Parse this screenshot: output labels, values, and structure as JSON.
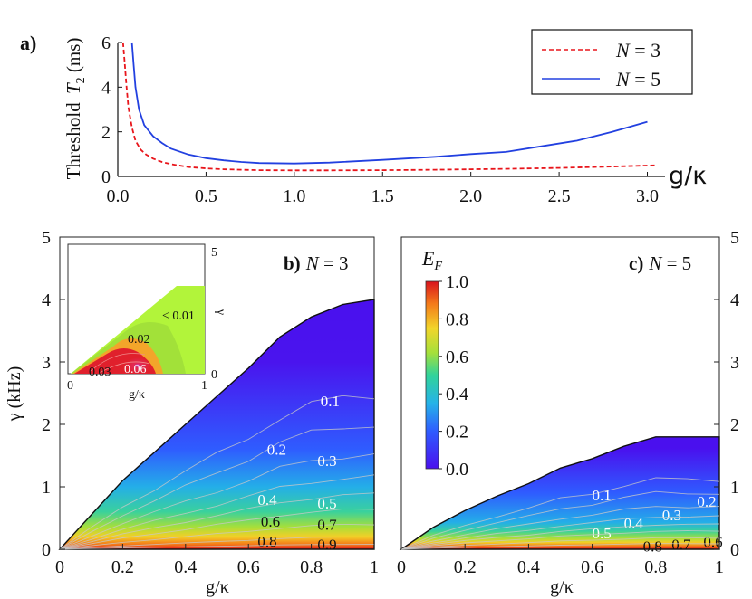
{
  "chart_data": [
    {
      "id": "a",
      "type": "line",
      "panel_label": "a)",
      "xlabel": "g/κ",
      "ylabel_main": "Threshold",
      "ylabel_var": "T",
      "ylabel_sub": "2",
      "ylabel_unit": " (ms)",
      "xlim": [
        0,
        3.1
      ],
      "ylim": [
        0,
        6
      ],
      "xticks": [
        "0.0",
        "0.5",
        "1.0",
        "1.5",
        "2.0",
        "2.5",
        "3.0"
      ],
      "xtick_values": [
        0,
        0.5,
        1,
        1.5,
        2,
        2.5,
        3
      ],
      "yticks": [
        "0",
        "2",
        "4",
        "6"
      ],
      "ytick_values": [
        0,
        2,
        4,
        6
      ],
      "series": [
        {
          "name": "N = 3",
          "legend_var": "N",
          "legend_rest": " = 3",
          "color": "#e8151b",
          "style": "dashed",
          "x": [
            0.03,
            0.04,
            0.05,
            0.06,
            0.08,
            0.1,
            0.13,
            0.16,
            0.2,
            0.25,
            0.3,
            0.4,
            0.5,
            0.6,
            0.8,
            1.0,
            1.2,
            1.5,
            1.8,
            2.0,
            2.2,
            2.5,
            2.8,
            3.05
          ],
          "y": [
            6.0,
            5.0,
            4.0,
            3.1,
            2.2,
            1.6,
            1.2,
            0.98,
            0.8,
            0.65,
            0.55,
            0.42,
            0.36,
            0.32,
            0.28,
            0.27,
            0.27,
            0.28,
            0.3,
            0.32,
            0.34,
            0.38,
            0.44,
            0.5
          ]
        },
        {
          "name": "N = 5",
          "legend_var": "N",
          "legend_rest": " = 5",
          "color": "#2240e0",
          "style": "solid",
          "x": [
            0.08,
            0.09,
            0.1,
            0.12,
            0.15,
            0.2,
            0.25,
            0.3,
            0.4,
            0.5,
            0.6,
            0.7,
            0.8,
            1.0,
            1.2,
            1.5,
            1.8,
            2.0,
            2.2,
            2.4,
            2.6,
            2.8,
            3.0
          ],
          "y": [
            6.0,
            5.0,
            4.0,
            3.0,
            2.3,
            1.8,
            1.5,
            1.25,
            0.98,
            0.82,
            0.72,
            0.65,
            0.6,
            0.58,
            0.62,
            0.74,
            0.88,
            1.0,
            1.1,
            1.35,
            1.6,
            2.0,
            2.45
          ]
        }
      ]
    },
    {
      "id": "b",
      "type": "heatmap",
      "panel_label": "b)",
      "panel_var": "N",
      "panel_rest": " = 3",
      "xlabel": "g/κ",
      "ylabel": "γ (kHz)",
      "xlim": [
        0,
        1
      ],
      "ylim": [
        0,
        5
      ],
      "xticks": [
        "0",
        "0.2",
        "0.4",
        "0.6",
        "0.8",
        "1"
      ],
      "xtick_values": [
        0,
        0.2,
        0.4,
        0.6,
        0.8,
        1
      ],
      "yticks": [
        "0",
        "1",
        "2",
        "3",
        "4",
        "5"
      ],
      "ytick_values": [
        0,
        1,
        2,
        3,
        4,
        5
      ],
      "boundary": {
        "x": [
          0,
          0.1,
          0.2,
          0.3,
          0.4,
          0.5,
          0.6,
          0.7,
          0.8,
          0.9,
          1.0
        ],
        "y": [
          0,
          0.55,
          1.1,
          1.55,
          2.0,
          2.45,
          2.9,
          3.4,
          3.72,
          3.92,
          4.0
        ]
      },
      "contours": [
        {
          "level": "0.1",
          "label_at": [
            0.86,
            2.38
          ]
        },
        {
          "level": "0.2",
          "label_at": [
            0.69,
            1.6
          ]
        },
        {
          "level": "0.3",
          "label_at": [
            0.85,
            1.42
          ]
        },
        {
          "level": "0.4",
          "label_at": [
            0.66,
            0.8
          ]
        },
        {
          "level": "0.5",
          "label_at": [
            0.85,
            0.74
          ]
        },
        {
          "level": "0.6",
          "label_at": [
            0.67,
            0.45
          ]
        },
        {
          "level": "0.7",
          "label_at": [
            0.85,
            0.4
          ]
        },
        {
          "level": "0.8",
          "label_at": [
            0.66,
            0.13
          ]
        },
        {
          "level": "0.9",
          "label_at": [
            0.85,
            0.08
          ]
        }
      ],
      "inset": {
        "xlabel": "g/κ",
        "ylabel": "γ",
        "xticks": [
          "0",
          "1"
        ],
        "yticks": [
          "0",
          "5"
        ],
        "labels": [
          "< 0.01",
          "0.02",
          "0.03",
          "0.06"
        ]
      }
    },
    {
      "id": "c",
      "type": "heatmap",
      "panel_label": "c)",
      "panel_var": "N",
      "panel_rest": " = 5",
      "xlabel": "g/κ",
      "xlim": [
        0,
        1
      ],
      "ylim": [
        0,
        5
      ],
      "xticks": [
        "0",
        "0.2",
        "0.4",
        "0.6",
        "0.8",
        "1"
      ],
      "xtick_values": [
        0,
        0.2,
        0.4,
        0.6,
        0.8,
        1
      ],
      "yticks": [
        "0",
        "1",
        "2",
        "3",
        "4",
        "5"
      ],
      "ytick_values": [
        0,
        1,
        2,
        3,
        4,
        5
      ],
      "boundary": {
        "x": [
          0,
          0.1,
          0.2,
          0.3,
          0.4,
          0.5,
          0.6,
          0.7,
          0.8,
          0.9,
          1.0
        ],
        "y": [
          0,
          0.35,
          0.62,
          0.85,
          1.05,
          1.3,
          1.45,
          1.65,
          1.8,
          1.8,
          1.8
        ]
      },
      "contours": [
        {
          "level": "0.1",
          "label_at": [
            0.63,
            0.87
          ]
        },
        {
          "level": "0.2",
          "label_at": [
            0.96,
            0.77
          ]
        },
        {
          "level": "0.3",
          "label_at": [
            0.85,
            0.55
          ]
        },
        {
          "level": "0.4",
          "label_at": [
            0.73,
            0.42
          ]
        },
        {
          "level": "0.5",
          "label_at": [
            0.63,
            0.26
          ]
        },
        {
          "level": "0.6",
          "label_at": [
            0.98,
            0.12
          ]
        },
        {
          "level": "0.7",
          "label_at": [
            0.88,
            0.08
          ]
        },
        {
          "level": "0.8",
          "label_at": [
            0.79,
            0.05
          ]
        }
      ]
    }
  ],
  "colorbar": {
    "label_var": "E",
    "label_sub": "F",
    "ticks": [
      "1.0",
      "0.8",
      "0.6",
      "0.4",
      "0.2",
      "0.0"
    ],
    "tick_values": [
      1.0,
      0.8,
      0.6,
      0.4,
      0.2,
      0.0
    ]
  }
}
